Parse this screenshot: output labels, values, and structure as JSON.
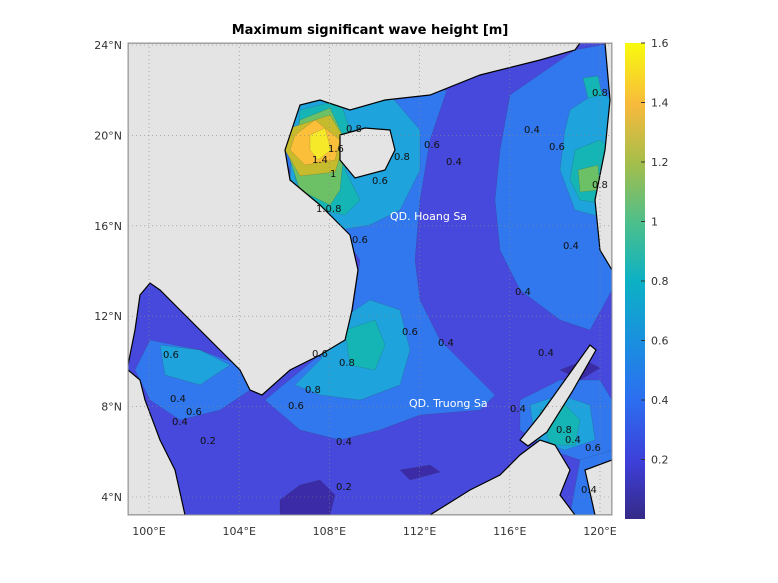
{
  "chart_data": {
    "type": "heatmap",
    "subtype": "filled-contour-map",
    "title": "Maximum significant wave height [m]",
    "xlabel": "",
    "ylabel": "",
    "x_ticks": [
      "100°E",
      "104°E",
      "108°E",
      "112°E",
      "116°E",
      "120°E"
    ],
    "y_ticks": [
      "24°N",
      "20°N",
      "16°N",
      "12°N",
      "8°N",
      "4°N"
    ],
    "xlim": [
      99,
      121
    ],
    "ylim": [
      3,
      24
    ],
    "grid": true,
    "contour_levels": [
      0.2,
      0.4,
      0.6,
      0.8,
      1.0,
      1.2,
      1.4,
      1.6
    ],
    "colorbar": {
      "colormap": "parula",
      "range": [
        0,
        1.6
      ],
      "ticks": [
        "1.6",
        "1.4",
        "1.2",
        "1",
        "0.8",
        "0.6",
        "0.4",
        "0.2"
      ],
      "placement": "right"
    },
    "band_colors": {
      "0.0-0.2": "#3b2ba6",
      "0.2-0.4": "#4749dc",
      "0.4-0.6": "#3178ee",
      "0.6-0.8": "#1fa3dd",
      "0.8-1.0": "#16b5b5",
      "1.0-1.2": "#6cc065",
      "1.2-1.4": "#c6bb2c",
      "1.4-1.6": "#fbbf3a",
      "1.6+": "#f5e92a",
      "land": "#e4e4e4"
    },
    "contour_labels": [
      "1.4",
      "1.6",
      "0.8",
      "1",
      "1.0.8",
      "0.6",
      "0.8",
      "0.6",
      "0.4",
      "0.4",
      "0.6",
      "0.8",
      "0.8",
      "0.6",
      "0.4",
      "0.4",
      "0.6",
      "0.4",
      "0.4",
      "0.8",
      "0.6",
      "0.8",
      "0.6",
      "0.4",
      "0.2",
      "0.4",
      "0.6",
      "0.4",
      "0.2",
      "0.6",
      "0.4",
      "0.6",
      "0.4",
      "0.4",
      "0.8"
    ],
    "annotations": [
      "QD. Hoang Sa",
      "QD. Truong Sa"
    ]
  }
}
